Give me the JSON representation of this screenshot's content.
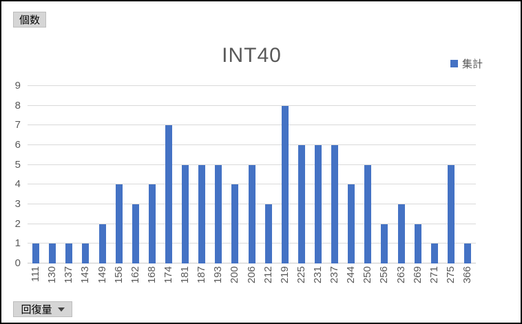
{
  "window": {
    "background": "#ffffff",
    "frame_border": "#000000"
  },
  "field_buttons": {
    "value_button_label": "個数",
    "axis_button_label": "回復量"
  },
  "legend": {
    "label": "集計",
    "swatch_color": "#4472c4",
    "position": "top-right"
  },
  "chart_data": {
    "type": "bar",
    "title": "INT40",
    "categories": [
      "111",
      "130",
      "137",
      "143",
      "149",
      "156",
      "162",
      "168",
      "174",
      "181",
      "187",
      "193",
      "200",
      "206",
      "212",
      "219",
      "225",
      "231",
      "237",
      "244",
      "250",
      "256",
      "263",
      "269",
      "271",
      "275",
      "366"
    ],
    "series": [
      {
        "name": "集計",
        "values": [
          1,
          1,
          1,
          1,
          2,
          4,
          3,
          4,
          7,
          5,
          5,
          5,
          4,
          5,
          3,
          8,
          6,
          6,
          6,
          4,
          5,
          2,
          3,
          2,
          1,
          5,
          1
        ]
      }
    ],
    "xlabel": "",
    "ylabel": "",
    "ylim": [
      0,
      9
    ],
    "yticks": [
      0,
      1,
      2,
      3,
      4,
      5,
      6,
      7,
      8,
      9
    ],
    "grid": "horizontal",
    "bar_color": "#4472c4",
    "gridline_color": "#d9d9d9",
    "tick_label_color": "#595959",
    "title_color": "#595959",
    "x_tick_rotation": -90
  }
}
